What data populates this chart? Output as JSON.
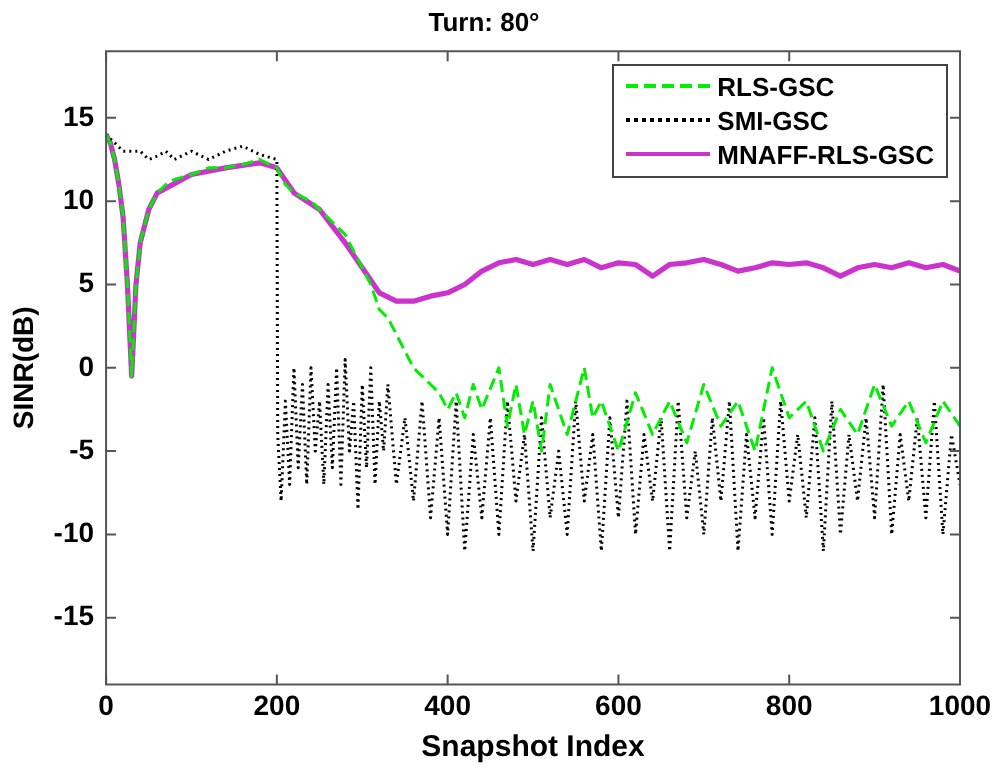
{
  "chart_data": {
    "type": "line",
    "title": "Turn: 80°",
    "xlabel": "Snapshot Index",
    "ylabel": "SINR(dB)",
    "xlim": [
      0,
      1000
    ],
    "xticks": [
      0,
      200,
      400,
      600,
      800,
      1000
    ],
    "ylim": [
      -19,
      19
    ],
    "yticks": [
      -15,
      -10,
      -5,
      0,
      5,
      10,
      15
    ],
    "grid": false,
    "legend": "top right",
    "series": [
      {
        "name": "RLS-GSC",
        "color": "#00ee00",
        "line_style": "dashed",
        "x": [
          0,
          5,
          10,
          15,
          20,
          25,
          30,
          35,
          40,
          50,
          60,
          70,
          80,
          100,
          120,
          140,
          160,
          180,
          200,
          210,
          220,
          240,
          260,
          280,
          300,
          310,
          320,
          330,
          340,
          350,
          360,
          370,
          380,
          390,
          400,
          410,
          420,
          430,
          440,
          460,
          470,
          480,
          490,
          500,
          510,
          520,
          540,
          560,
          570,
          580,
          600,
          620,
          640,
          660,
          680,
          700,
          720,
          740,
          760,
          780,
          800,
          820,
          840,
          860,
          880,
          900,
          920,
          940,
          960,
          980,
          1000
        ],
        "values": [
          14,
          13.5,
          12.5,
          11,
          9,
          5,
          -0.5,
          5,
          7.5,
          9.5,
          10.5,
          11,
          11.3,
          11.6,
          12,
          12,
          12.2,
          12.5,
          12,
          11,
          10.5,
          10,
          9,
          8,
          6,
          5,
          3.5,
          3,
          2,
          1,
          0,
          -0.5,
          -1,
          -1.5,
          -2.5,
          -1.5,
          -3,
          -1,
          -2.5,
          0,
          -3.5,
          -1,
          -4,
          -2,
          -5,
          -1,
          -4,
          0,
          -3,
          -2,
          -5,
          -1.5,
          -4,
          -2,
          -4.5,
          -1,
          -3.5,
          -2,
          -5,
          0,
          -3,
          -2,
          -5,
          -2.5,
          -4,
          -1,
          -3.5,
          -2,
          -4.5,
          -2,
          -3.5
        ]
      },
      {
        "name": "SMI-GSC",
        "color": "#000000",
        "line_style": "dotted",
        "x": [
          0,
          10,
          20,
          30,
          40,
          50,
          60,
          70,
          80,
          100,
          120,
          140,
          160,
          180,
          200,
          201,
          205,
          210,
          215,
          220,
          225,
          230,
          235,
          240,
          245,
          250,
          255,
          260,
          265,
          270,
          275,
          280,
          285,
          290,
          295,
          300,
          305,
          310,
          315,
          320,
          325,
          330,
          340,
          350,
          360,
          370,
          380,
          390,
          400,
          410,
          420,
          430,
          440,
          450,
          460,
          470,
          480,
          490,
          500,
          510,
          520,
          530,
          540,
          550,
          560,
          570,
          580,
          590,
          600,
          610,
          620,
          630,
          640,
          650,
          660,
          670,
          680,
          690,
          700,
          710,
          720,
          730,
          740,
          750,
          760,
          770,
          780,
          790,
          800,
          810,
          820,
          830,
          840,
          850,
          860,
          870,
          880,
          890,
          900,
          910,
          920,
          930,
          940,
          950,
          960,
          970,
          980,
          990,
          1000
        ],
        "values": [
          14,
          13.5,
          13,
          13,
          13,
          12.5,
          12.7,
          13,
          12.5,
          13,
          12.5,
          13,
          13.3,
          12.8,
          12.5,
          -4,
          -8,
          -2,
          -7,
          0,
          -6,
          -1,
          -7,
          0,
          -5,
          -2,
          -7,
          -1,
          -6,
          0,
          -7,
          0.5,
          -5,
          -2,
          -8.5,
          -1,
          -6,
          0,
          -7,
          -2,
          -5,
          -1,
          -7,
          -3,
          -8,
          -2,
          -9,
          -3,
          -10,
          -2,
          -11,
          -4,
          -9,
          -3,
          -10,
          -2,
          -8,
          -4,
          -11,
          -3,
          -9,
          -5,
          -10,
          -2,
          -8,
          -4,
          -11,
          -3,
          -9,
          -2,
          -10,
          -4,
          -8,
          -3,
          -11,
          -2,
          -9,
          -5,
          -10,
          -3,
          -8,
          -2,
          -11,
          -4,
          -9,
          -3,
          -10,
          -2,
          -8,
          -4,
          -9,
          -3,
          -11,
          -2,
          -10,
          -4,
          -8,
          -3,
          -9,
          -1,
          -10,
          -4,
          -8,
          -3,
          -9,
          -2,
          -10,
          -4,
          -7
        ]
      },
      {
        "name": "MNAFF-RLS-GSC",
        "color": "#cc33cc",
        "line_style": "solid",
        "x": [
          0,
          5,
          10,
          15,
          20,
          25,
          30,
          35,
          40,
          50,
          60,
          100,
          140,
          180,
          200,
          220,
          250,
          280,
          300,
          320,
          340,
          360,
          380,
          400,
          420,
          440,
          460,
          480,
          500,
          520,
          540,
          560,
          580,
          600,
          620,
          640,
          660,
          680,
          700,
          720,
          740,
          760,
          780,
          800,
          820,
          840,
          860,
          880,
          900,
          920,
          940,
          960,
          980,
          1000
        ],
        "values": [
          14,
          13.5,
          12.5,
          11,
          9,
          5,
          -0.5,
          5,
          7.5,
          9.5,
          10.5,
          11.6,
          12,
          12.3,
          12,
          10.5,
          9.5,
          7.5,
          6,
          4.5,
          4,
          4,
          4.3,
          4.5,
          5,
          5.8,
          6.3,
          6.5,
          6.2,
          6.5,
          6.2,
          6.5,
          6,
          6.3,
          6.2,
          5.5,
          6.2,
          6.3,
          6.5,
          6.2,
          5.8,
          6,
          6.3,
          6.2,
          6.3,
          6,
          5.5,
          6,
          6.2,
          6,
          6.3,
          6,
          6.2,
          5.8
        ]
      }
    ]
  }
}
